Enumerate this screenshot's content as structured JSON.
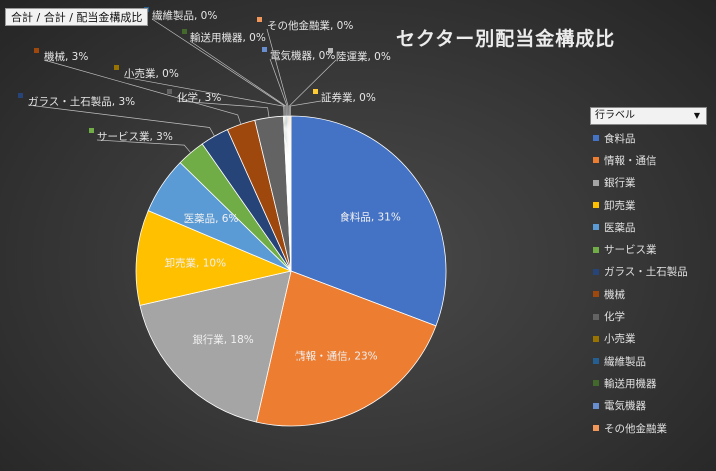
{
  "field_button": "合計 / 合計 / 配当金構成比",
  "legend_filter": {
    "label": "行ラベル"
  },
  "chart_data": {
    "type": "pie",
    "title": "セクター別配当金構成比",
    "legend_position": "right",
    "series": [
      {
        "values": [
          31,
          23,
          18,
          10,
          6,
          3,
          3,
          3,
          3,
          0,
          0,
          0,
          0,
          0,
          0,
          0
        ]
      }
    ],
    "categories": [
      "食料品",
      "情報・通信",
      "銀行業",
      "卸売業",
      "医薬品",
      "サービス業",
      "ガラス・土石製品",
      "機械",
      "化学",
      "小売業",
      "繊維製品",
      "輸送用機器",
      "電気機器",
      "その他金融業",
      "陸運業",
      "証券業"
    ],
    "data_labels": [
      "食料品, 31%",
      "情報・通信, 23%",
      "銀行業, 18%",
      "卸売業, 10%",
      "医薬品, 6%",
      "サービス業, 3%",
      "ガラス・土石製品, 3%",
      "機械, 3%",
      "化学, 3%",
      "小売業, 0%",
      "繊維製品, 0%",
      "輸送用機器, 0%",
      "電気機器, 0%",
      "その他金融業, 0%",
      "陸運業, 0%",
      "証券業, 0%"
    ],
    "colors": [
      "#4472c4",
      "#ed7d31",
      "#a5a5a5",
      "#ffc000",
      "#5b9bd5",
      "#70ad47",
      "#264478",
      "#9e480e",
      "#636363",
      "#997300",
      "#255e91",
      "#43682b",
      "#698ed0",
      "#f1975a",
      "#b7b7b7",
      "#ffcd33"
    ],
    "legend": [
      "食料品",
      "情報・通信",
      "銀行業",
      "卸売業",
      "医薬品",
      "サービス業",
      "ガラス・土石製品",
      "機械",
      "化学",
      "小売業",
      "繊維製品",
      "輸送用機器",
      "電気機器",
      "その他金融業"
    ]
  }
}
